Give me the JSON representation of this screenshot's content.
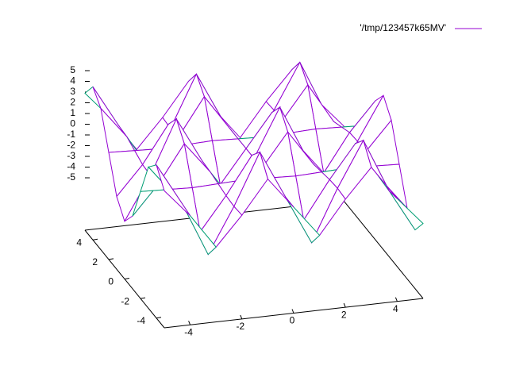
{
  "chart_data": {
    "type": "surface",
    "series": [
      {
        "name": "'/tmp/123457k65MV'",
        "color": "#9400d3",
        "back_color": "#009e73"
      }
    ],
    "x": [
      -5,
      -4,
      -3,
      -2,
      -1,
      0,
      1,
      2,
      3,
      4,
      5
    ],
    "y": [
      -5,
      -4,
      -3,
      -2,
      -1,
      0,
      1,
      2,
      3,
      4,
      5
    ],
    "z": [
      [
        2.9,
        0.3,
        -2.9,
        -0.2,
        2.9,
        0,
        -2.9,
        0.2,
        2.9,
        -0.3,
        -2.9
      ],
      [
        4.4,
        0.5,
        -4.5,
        -0.3,
        4.5,
        0,
        -4.5,
        0.3,
        4.5,
        -0.5,
        -4.4
      ],
      [
        3.3,
        0.4,
        -3.3,
        -0.2,
        3.3,
        0,
        -3.3,
        0.2,
        3.3,
        -0.4,
        -3.3
      ],
      [
        0.1,
        0,
        -0.1,
        0,
        0.1,
        0,
        -0.1,
        0,
        0.1,
        0,
        -0.1
      ],
      [
        -3.1,
        -0.4,
        3.1,
        0.2,
        -3.1,
        0,
        3.1,
        -0.2,
        -3.1,
        0.4,
        3.1
      ],
      [
        -4.5,
        -0.5,
        4.5,
        0.3,
        -4.5,
        0,
        4.5,
        -0.3,
        -4.5,
        0.5,
        4.5
      ],
      [
        -3.1,
        -0.4,
        3.1,
        0.2,
        -3.1,
        0,
        3.1,
        -0.2,
        -3.1,
        0.4,
        3.1
      ],
      [
        0.1,
        0,
        -0.1,
        0,
        0.1,
        0,
        -0.1,
        0,
        0.1,
        0,
        -0.1
      ],
      [
        3.3,
        0.4,
        -3.3,
        -0.2,
        3.3,
        0,
        -3.3,
        0.2,
        3.3,
        -0.4,
        -3.3
      ],
      [
        4.4,
        0.5,
        -4.5,
        -0.3,
        4.5,
        0,
        -4.5,
        0.3,
        4.5,
        -0.5,
        -4.4
      ],
      [
        2.9,
        0.3,
        -2.9,
        -0.2,
        2.9,
        0,
        -2.9,
        0.2,
        2.9,
        -0.3,
        -2.9
      ]
    ],
    "xlim": [
      -5,
      5
    ],
    "ylim": [
      -5,
      5
    ],
    "zlim": [
      -5,
      5
    ],
    "xticks": [
      -4,
      -2,
      0,
      2,
      4
    ],
    "yticks": [
      -4,
      -2,
      0,
      2,
      4
    ],
    "zticks": [
      -5,
      -4,
      -3,
      -2,
      -1,
      0,
      1,
      2,
      3,
      4,
      5
    ],
    "legend": "top-right"
  }
}
